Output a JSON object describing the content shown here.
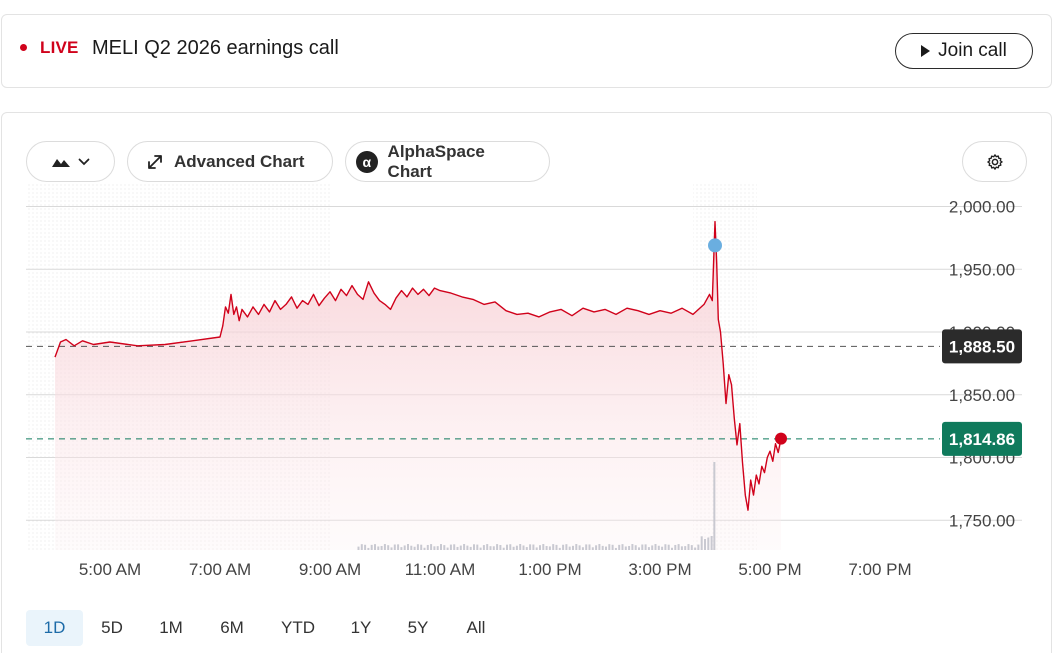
{
  "event": {
    "live_label": "LIVE",
    "title": "MELI Q2 2026 earnings call",
    "join_label": "Join call"
  },
  "toolbar": {
    "chart_type_icon": "mountain-area-icon",
    "advanced_label": "Advanced Chart",
    "alphaspace_label": "AlphaSpace Chart",
    "alphaspace_glyph": "α",
    "settings_icon": "gear-icon"
  },
  "colors": {
    "line": "#d0021b",
    "area_top": "#f6c9cf",
    "last_badge": "#0f7a5c",
    "prev_badge": "#2b2b2b",
    "event_marker": "#6aaee0",
    "grid": "#d9d9d9",
    "active_range_bg": "#eaf4fb",
    "active_range_text": "#1d6ba8"
  },
  "chart_data": {
    "type": "area",
    "ylim": [
      1740,
      2012
    ],
    "yticks": [
      "2,000.00",
      "1,950.00",
      "1,900.00",
      "1,850.00",
      "1,800.00",
      "1,750.00"
    ],
    "ytick_values": [
      2000,
      1950,
      1900,
      1850,
      1800,
      1750
    ],
    "xticks": [
      "5:00 AM",
      "7:00 AM",
      "9:00 AM",
      "11:00 AM",
      "1:00 PM",
      "3:00 PM",
      "5:00 PM",
      "7:00 PM"
    ],
    "xtick_hours": [
      5,
      7,
      9,
      11,
      13,
      15,
      17,
      19
    ],
    "xlim_hours": [
      4.0,
      20.5
    ],
    "previous_close": {
      "value": 1888.5,
      "label": "1,888.50"
    },
    "last_price": {
      "value": 1814.86,
      "label": "1,814.86"
    },
    "event_marker": {
      "hour": 16.0,
      "value": 1969
    },
    "series": [
      {
        "x": [
          4.0,
          4.1,
          4.2,
          4.35,
          4.5,
          4.7,
          5.0,
          5.5,
          6.0,
          6.5,
          7.0,
          7.05,
          7.1,
          7.15,
          7.2,
          7.25,
          7.3,
          7.35,
          7.4,
          7.5,
          7.6,
          7.7,
          7.8,
          7.9,
          8.0,
          8.1,
          8.2,
          8.3,
          8.4,
          8.5,
          8.6,
          8.7,
          8.8,
          8.9,
          9.0,
          9.1,
          9.2,
          9.3,
          9.4,
          9.5,
          9.6,
          9.7,
          9.8,
          9.9,
          10.0,
          10.1,
          10.2,
          10.3,
          10.4,
          10.5,
          10.6,
          10.7,
          10.8,
          10.9,
          11.0,
          11.2,
          11.4,
          11.6,
          11.8,
          12.0,
          12.2,
          12.4,
          12.6,
          12.8,
          13.0,
          13.2,
          13.4,
          13.6,
          13.8,
          14.0,
          14.2,
          14.4,
          14.6,
          14.8,
          15.0,
          15.2,
          15.4,
          15.6,
          15.7,
          15.8,
          15.9,
          15.95,
          16.0,
          16.03,
          16.06,
          16.1,
          16.15,
          16.2,
          16.25,
          16.3,
          16.35,
          16.4,
          16.45,
          16.5,
          16.55,
          16.6,
          16.65,
          16.7,
          16.75,
          16.8,
          16.85,
          16.9,
          16.95,
          17.0,
          17.05,
          17.1,
          17.15,
          17.2
        ],
        "values": [
          1880,
          1892,
          1894,
          1889,
          1893,
          1890,
          1892,
          1889,
          1890,
          1893,
          1896,
          1905,
          1920,
          1915,
          1930,
          1914,
          1920,
          1909,
          1918,
          1912,
          1920,
          1914,
          1922,
          1916,
          1925,
          1918,
          1922,
          1928,
          1919,
          1925,
          1922,
          1930,
          1921,
          1927,
          1932,
          1925,
          1934,
          1929,
          1937,
          1930,
          1926,
          1940,
          1931,
          1925,
          1922,
          1918,
          1927,
          1933,
          1928,
          1935,
          1930,
          1934,
          1929,
          1935,
          1933,
          1931,
          1928,
          1926,
          1922,
          1924,
          1917,
          1914,
          1915,
          1912,
          1916,
          1918,
          1913,
          1919,
          1916,
          1918,
          1914,
          1919,
          1917,
          1914,
          1917,
          1915,
          1919,
          1914,
          1918,
          1922,
          1930,
          1925,
          1988,
          1955,
          1910,
          1900,
          1875,
          1843,
          1866,
          1858,
          1831,
          1810,
          1827,
          1796,
          1770,
          1758,
          1782,
          1770,
          1786,
          1779,
          1793,
          1788,
          1800,
          1805,
          1797,
          1811,
          1804,
          1815
        ]
      }
    ]
  },
  "ranges": [
    "1D",
    "5D",
    "1M",
    "6M",
    "YTD",
    "1Y",
    "5Y",
    "All"
  ],
  "active_range": "1D"
}
